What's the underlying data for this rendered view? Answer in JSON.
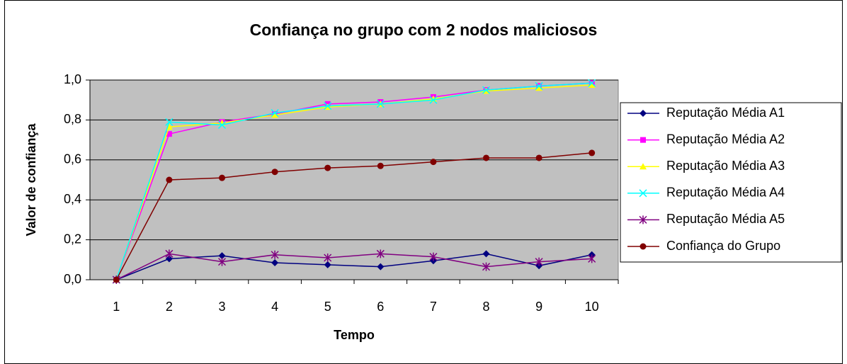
{
  "chart_data": {
    "type": "line",
    "title": "Confiança no grupo com 2 nodos maliciosos",
    "xlabel": "Tempo",
    "ylabel": "Valor de confiança",
    "categories": [
      "1",
      "2",
      "3",
      "4",
      "5",
      "6",
      "7",
      "8",
      "9",
      "10"
    ],
    "ylim": [
      0,
      1
    ],
    "yticks": [
      {
        "value": 0,
        "label": "0,0"
      },
      {
        "value": 0.2,
        "label": "0,2"
      },
      {
        "value": 0.4,
        "label": "0,4"
      },
      {
        "value": 0.6,
        "label": "0,6"
      },
      {
        "value": 0.8,
        "label": "0,8"
      },
      {
        "value": 1,
        "label": "1,0"
      }
    ],
    "grid": true,
    "legend": "right",
    "plot_background": "#c0c0c0",
    "series": [
      {
        "name": "Reputação Média A1",
        "color": "#000080",
        "marker": "diamond",
        "values": [
          0,
          0.105,
          0.12,
          0.085,
          0.075,
          0.065,
          0.095,
          0.13,
          0.07,
          0.125
        ]
      },
      {
        "name": "Reputação Média A2",
        "color": "#ff00ff",
        "marker": "square",
        "values": [
          0,
          0.73,
          0.79,
          0.83,
          0.88,
          0.89,
          0.915,
          0.95,
          0.97,
          0.985
        ]
      },
      {
        "name": "Reputação Média A3",
        "color": "#ffff00",
        "marker": "triangle",
        "values": [
          0,
          0.765,
          0.785,
          0.825,
          0.865,
          0.88,
          0.905,
          0.945,
          0.96,
          0.975
        ]
      },
      {
        "name": "Reputação Média A4",
        "color": "#00ffff",
        "marker": "x",
        "values": [
          0,
          0.79,
          0.775,
          0.835,
          0.87,
          0.88,
          0.9,
          0.95,
          0.97,
          0.985
        ]
      },
      {
        "name": "Reputação Média A5",
        "color": "#800080",
        "marker": "asterisk",
        "values": [
          0,
          0.13,
          0.09,
          0.125,
          0.11,
          0.13,
          0.115,
          0.065,
          0.09,
          0.105
        ]
      },
      {
        "name": "Confiança do Grupo",
        "color": "#800000",
        "marker": "circle",
        "values": [
          0,
          0.5,
          0.51,
          0.54,
          0.56,
          0.57,
          0.59,
          0.61,
          0.61,
          0.635
        ]
      }
    ]
  }
}
